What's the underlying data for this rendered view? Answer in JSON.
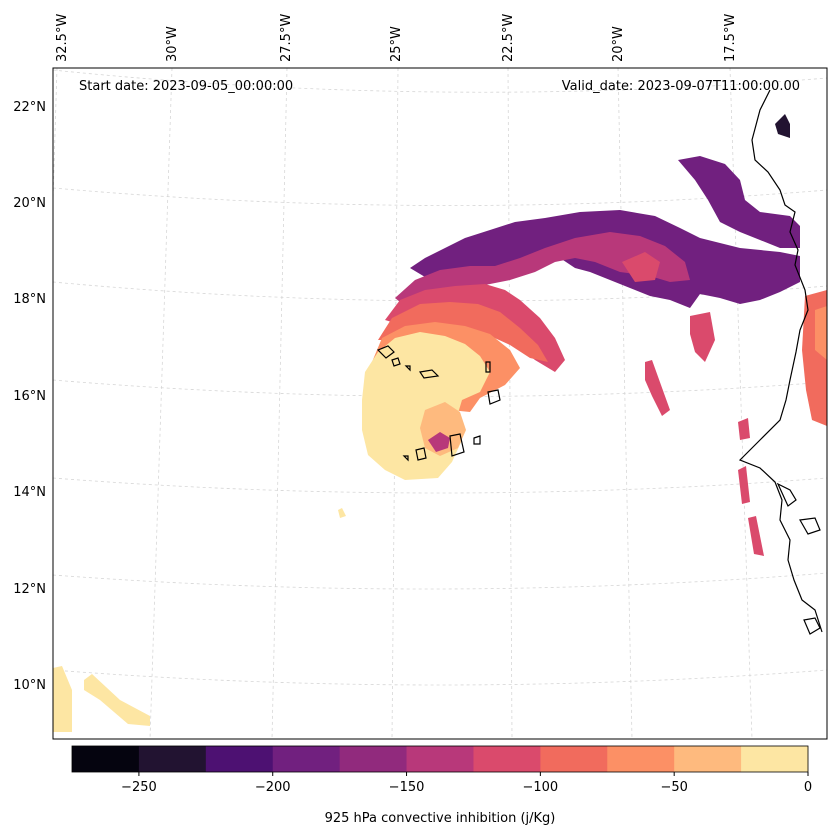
{
  "map": {
    "start_label": "Start date: 2023-09-05_00:00:00",
    "valid_label": "Valid_date: 2023-09-07T11:00:00.00",
    "lon_labels": [
      "32.5°W",
      "30°W",
      "27.5°W",
      "25°W",
      "22.5°W",
      "20°W",
      "17.5°W"
    ],
    "lat_labels": [
      "22°N",
      "20°N",
      "18°N",
      "16°N",
      "14°N",
      "12°N",
      "10°N"
    ],
    "variable": "925 hPa convective inhibition (j/Kg)"
  },
  "colorbar": {
    "label": "925 hPa convective inhibition (j/Kg)",
    "tick_labels": [
      "−250",
      "−200",
      "−150",
      "−100",
      "−50",
      "0"
    ],
    "range": [
      -275,
      0
    ],
    "levels": [
      -275,
      -250,
      -225,
      -200,
      -175,
      -150,
      -125,
      -100,
      -75,
      -50,
      -25,
      0
    ],
    "colors": [
      "#05040f",
      "#221331",
      "#4d1172",
      "#71207f",
      "#912a7d",
      "#b8387a",
      "#da4a6c",
      "#f16b5d",
      "#fc9065",
      "#feba7e",
      "#fde6a3"
    ]
  },
  "colors": {
    "coast": "#000000",
    "grid": "#d0d0d0"
  }
}
